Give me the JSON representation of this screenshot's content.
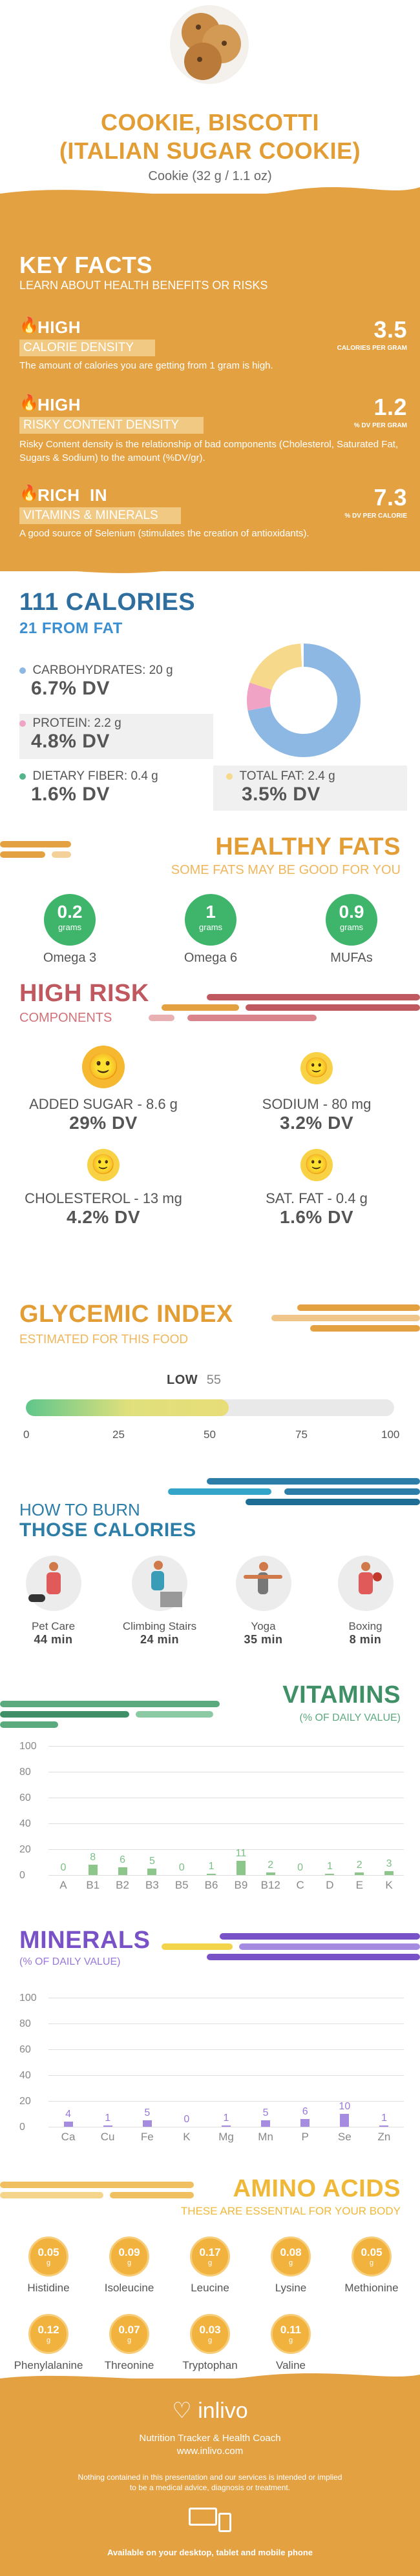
{
  "header": {
    "title_line1": "COOKIE, BISCOTTI",
    "title_line2": "(ITALIAN SUGAR COOKIE)",
    "serving": "Cookie (32 g / 1.1 oz)"
  },
  "key_facts": {
    "title": "KEY FACTS",
    "subtitle": "LEARN ABOUT HEALTH BENEFITS OR RISKS",
    "items": [
      {
        "level": "HIGH",
        "name": "CALORIE DENSITY",
        "value": "3.5",
        "unit": "CALORIES PER GRAM",
        "desc": "The amount of calories you are getting from 1 gram is high."
      },
      {
        "level": "HIGH",
        "name": "RISKY CONTENT DENSITY",
        "value": "1.2",
        "unit": "% DV PER GRAM",
        "desc": "Risky Content density is the relationship of bad components (Cholesterol, Saturated Fat, Sugars & Sodium) to the amount (%DV/gr)."
      },
      {
        "level": "RICH  IN",
        "name": "VITAMINS & MINERALS",
        "value": "7.3",
        "unit": "% DV PER CALORIE",
        "desc": "A good source of Selenium (stimulates the creation of antioxidants)."
      }
    ]
  },
  "calories": {
    "title": "111 CALORIES",
    "subtitle": "21 FROM FAT",
    "carbs_label": "CARBOHYDRATES: 20 g",
    "carbs_dv": "6.7% DV",
    "protein_label": "PROTEIN: 2.2 g",
    "protein_dv": "4.8% DV",
    "fiber_label": "DIETARY FIBER: 0.4 g",
    "fiber_dv": "1.6% DV",
    "fat_label": "TOTAL FAT: 2.4 g",
    "fat_dv": "3.5% DV",
    "colors": {
      "carbs": "#8db8e3",
      "protein": "#f0a3c4",
      "fiber": "#55b58a",
      "fat": "#f6d98a"
    }
  },
  "healthy_fats": {
    "title": "HEALTHY FATS",
    "subtitle": "SOME FATS MAY BE GOOD FOR YOU",
    "items": [
      {
        "value": "0.2",
        "unit": "grams",
        "label": "Omega 3"
      },
      {
        "value": "1",
        "unit": "grams",
        "label": "Omega 6"
      },
      {
        "value": "0.9",
        "unit": "grams",
        "label": "MUFAs"
      }
    ]
  },
  "high_risk": {
    "title": "HIGH RISK",
    "subtitle": "COMPONENTS",
    "items": [
      {
        "label": "ADDED SUGAR - 8.6 g",
        "dv": "29% DV"
      },
      {
        "label": "SODIUM - 80 mg",
        "dv": "3.2% DV"
      },
      {
        "label": "CHOLESTEROL - 13 mg",
        "dv": "4.2% DV"
      },
      {
        "label": "SAT. FAT - 0.4 g",
        "dv": "1.6% DV"
      }
    ]
  },
  "glycemic": {
    "title": "GLYCEMIC INDEX",
    "subtitle": "ESTIMATED FOR THIS FOOD",
    "level": "LOW",
    "value": "55",
    "ticks": [
      "0",
      "25",
      "50",
      "75",
      "100"
    ],
    "fill_fraction": 0.55
  },
  "burn": {
    "title1": "HOW TO BURN",
    "title2": "THOSE CALORIES",
    "items": [
      {
        "label": "Pet Care",
        "time": "44 min"
      },
      {
        "label": "Climbing Stairs",
        "time": "24 min"
      },
      {
        "label": "Yoga",
        "time": "35 min"
      },
      {
        "label": "Boxing",
        "time": "8 min"
      }
    ]
  },
  "vitamins": {
    "title": "VITAMINS",
    "subtitle": "(% OF DAILY VALUE)",
    "y_ticks": [
      "100",
      "80",
      "60",
      "40",
      "20",
      "0"
    ],
    "chart_data": {
      "type": "bar",
      "categories": [
        "A",
        "B1",
        "B2",
        "B3",
        "B5",
        "B6",
        "B9",
        "B12",
        "C",
        "D",
        "E",
        "K"
      ],
      "values": [
        0,
        8,
        6,
        5,
        0,
        1,
        11,
        2,
        0,
        1,
        2,
        3
      ],
      "ylim": [
        0,
        100
      ]
    }
  },
  "minerals": {
    "title": "MINERALS",
    "subtitle": "(% OF DAILY VALUE)",
    "y_ticks": [
      "100",
      "80",
      "60",
      "40",
      "20",
      "0"
    ],
    "chart_data": {
      "type": "bar",
      "categories": [
        "Ca",
        "Cu",
        "Fe",
        "K",
        "Mg",
        "Mn",
        "P",
        "Se",
        "Zn"
      ],
      "values": [
        4,
        1,
        5,
        0,
        1,
        5,
        6,
        10,
        1
      ],
      "ylim": [
        0,
        100
      ]
    }
  },
  "amino": {
    "title": "AMINO ACIDS",
    "subtitle": "THESE ARE ESSENTIAL FOR YOUR BODY",
    "unit": "g",
    "items": [
      {
        "value": "0.05",
        "label": "Histidine"
      },
      {
        "value": "0.09",
        "label": "Isoleucine"
      },
      {
        "value": "0.17",
        "label": "Leucine"
      },
      {
        "value": "0.08",
        "label": "Lysine"
      },
      {
        "value": "0.05",
        "label": "Methionine"
      },
      {
        "value": "0.12",
        "label": "Phenylalanine"
      },
      {
        "value": "0.07",
        "label": "Threonine"
      },
      {
        "value": "0.03",
        "label": "Tryptophan"
      },
      {
        "value": "0.11",
        "label": "Valine"
      }
    ]
  },
  "footer": {
    "brand": "inlivo",
    "tagline": "Nutrition Tracker & Health Coach",
    "url": "www.inlivo.com",
    "disclaimer1": "Nothing contained in this presentation and our services is intended or implied",
    "disclaimer2": "to be a medical advice, diagnosis or treatment.",
    "available": "Available on your desktop, tablet and mobile phone"
  }
}
